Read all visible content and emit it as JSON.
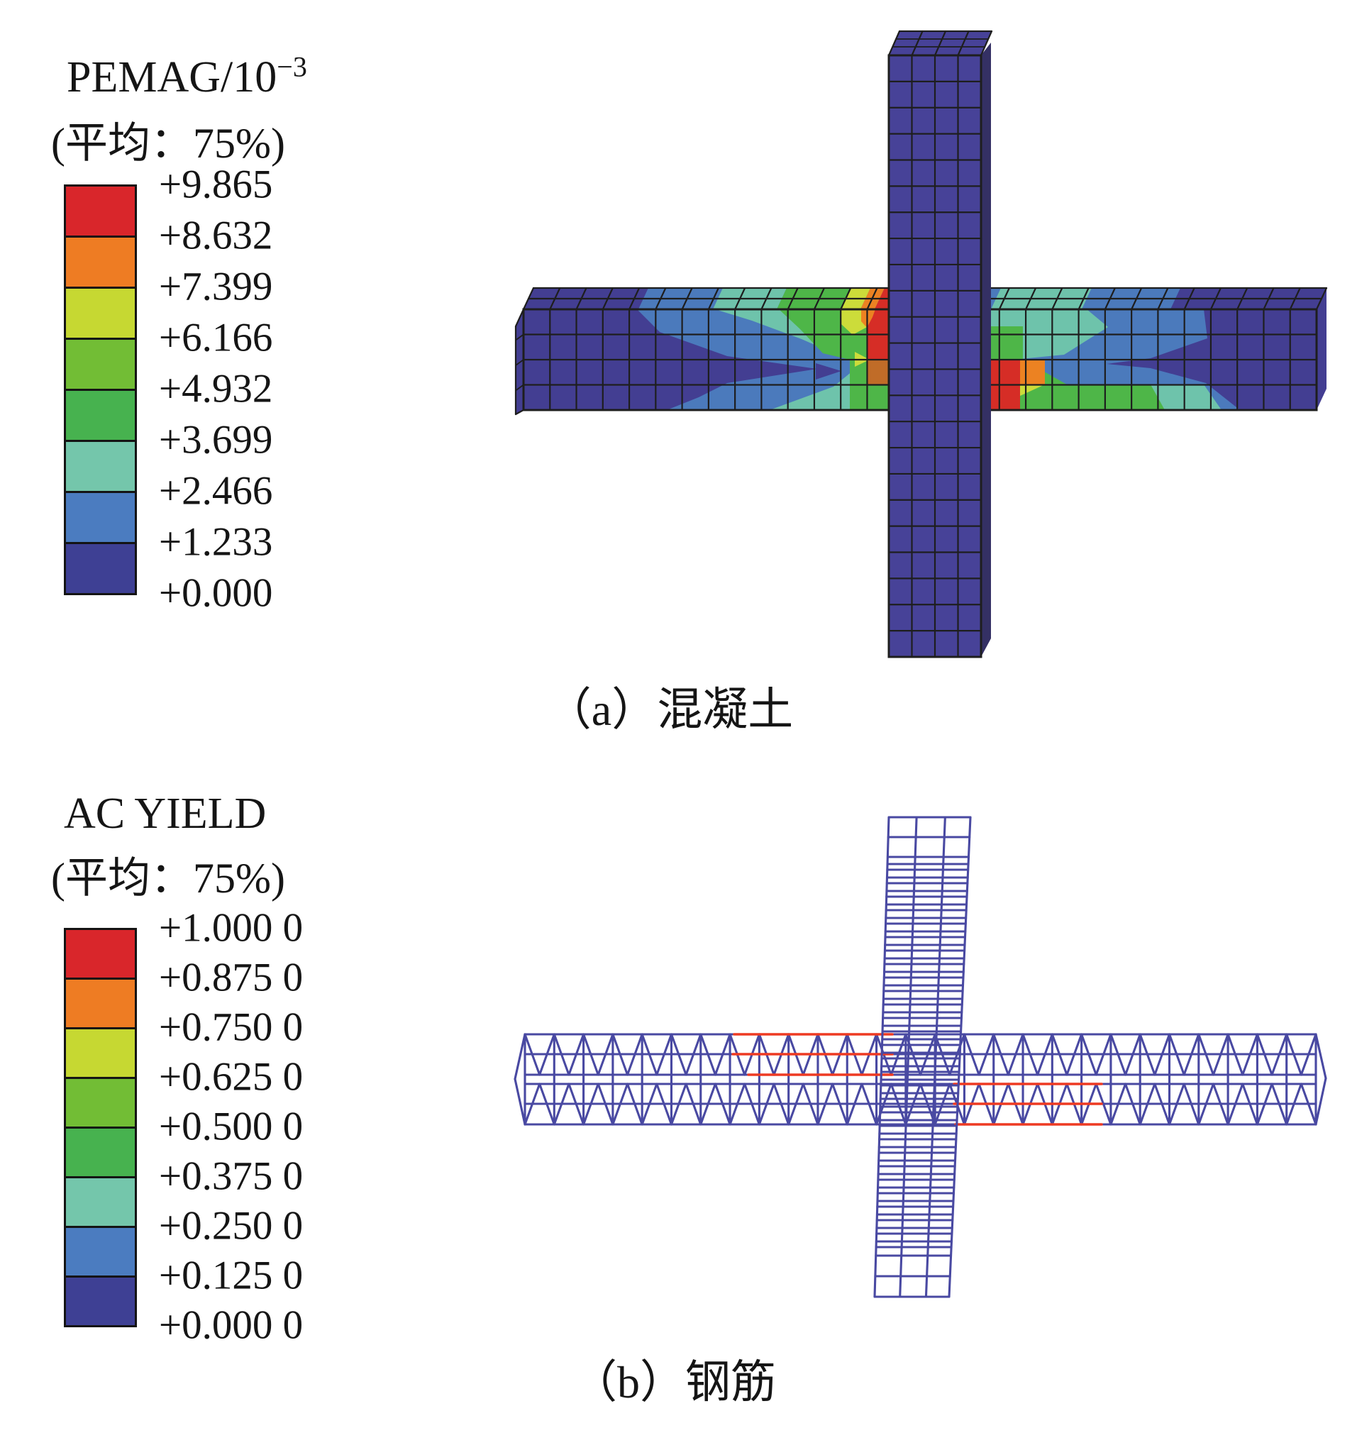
{
  "panel_a": {
    "legend": {
      "title_base": "PEMAG/10",
      "title_exponent": "−3",
      "subtitle": "(平均：75%)",
      "ticks": [
        "+9.865",
        "+8.632",
        "+7.399",
        "+6.166",
        "+4.932",
        "+3.699",
        "+2.466",
        "+1.233",
        "+0.000"
      ]
    },
    "caption": "（a）混凝土"
  },
  "panel_b": {
    "legend": {
      "title": "AC YIELD",
      "subtitle": "(平均：75%)",
      "ticks": [
        "+1.000 0",
        "+0.875 0",
        "+0.750 0",
        "+0.625 0",
        "+0.500 0",
        "+0.375 0",
        "+0.250 0",
        "+0.125 0",
        "+0.000 0"
      ]
    },
    "caption": "（b）钢筋"
  },
  "scale_colors": [
    "#d9262b",
    "#ee7c23",
    "#c6d832",
    "#72bd35",
    "#47b24f",
    "#74c6ab",
    "#4b7cc0",
    "#3e4094"
  ],
  "model_colors": {
    "dark": "#433e92",
    "blue": "#4b7abc",
    "teal": "#6ec3ab",
    "green": "#4eb648",
    "bright": "#72c13c",
    "yellow": "#ccdc3a",
    "orange": "#ec8222",
    "brown": "#c06c28",
    "red": "#d62d26",
    "column_fill": "#474298",
    "column_side": "#343064",
    "mesh_line": "#1e1e1e",
    "rebar_line": "#4949a2",
    "rebar_yield": "#ee3a22"
  },
  "rebar_yield": {
    "left_segments": [
      [
        1035,
        1458,
        1258
      ],
      [
        1033,
        1486,
        1258
      ],
      [
        1055,
        1515,
        1258
      ]
    ],
    "right_segments": [
      [
        1345,
        1528,
        1553
      ],
      [
        1345,
        1556,
        1553
      ],
      [
        1347,
        1585,
        1553
      ]
    ]
  }
}
